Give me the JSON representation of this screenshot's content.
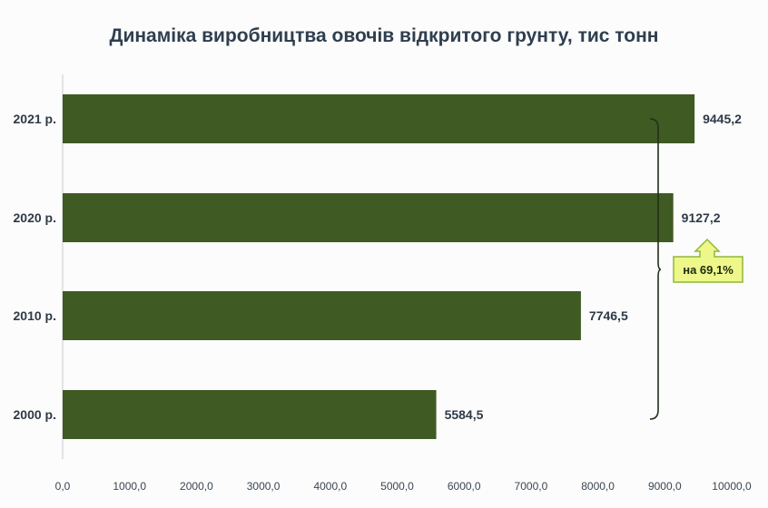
{
  "chart_data": {
    "type": "bar",
    "orientation": "horizontal",
    "title": "Динаміка виробництва  овочів відкритого грунту, тис тонн",
    "categories": [
      "2021 р.",
      "2020 р.",
      "2010 р.",
      "2000 р."
    ],
    "values": [
      9445.2,
      9127.2,
      7746.5,
      5584.5
    ],
    "value_labels": [
      "9445,2",
      "9127,2",
      "7746,5",
      "5584,5"
    ],
    "xlim": [
      0,
      10000
    ],
    "x_ticks": [
      "0,0",
      "1000,0",
      "2000,0",
      "3000,0",
      "4000,0",
      "5000,0",
      "6000,0",
      "7000,0",
      "8000,0",
      "9000,0",
      "10000,0"
    ],
    "xlabel": "",
    "ylabel": "",
    "grid": false,
    "bar_color": "#3f5a23",
    "annotation": {
      "text": "на 69,1%",
      "spans": [
        "2000 р.",
        "2021 р."
      ],
      "color": "#eef78a",
      "border_color": "#8fb83a"
    }
  }
}
